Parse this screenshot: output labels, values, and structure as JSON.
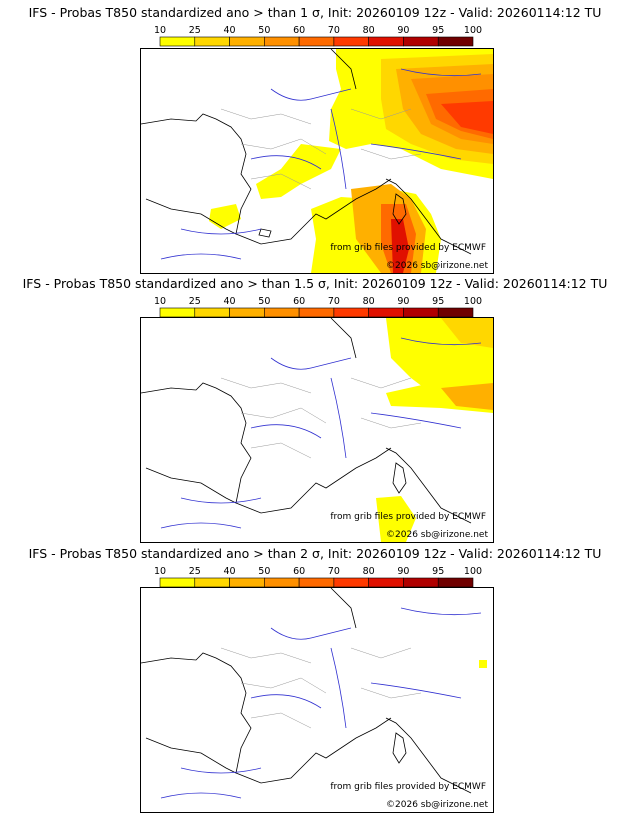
{
  "legend": {
    "levels": [
      "10",
      "25",
      "40",
      "50",
      "60",
      "70",
      "80",
      "90",
      "95",
      "100"
    ],
    "colors": [
      "#ffff00",
      "#ffd700",
      "#ffb000",
      "#ff9000",
      "#ff6a00",
      "#ff3a00",
      "#e01000",
      "#b00000",
      "#700000"
    ]
  },
  "panels": [
    {
      "title": "IFS - Probas T850  standardized ano > than 1 σ, Init: 20260109 12z - Valid: 20260114:12 TU"
    },
    {
      "title": "IFS - Probas T850  standardized ano > than 1.5 σ, Init: 20260109 12z - Valid: 20260114:12 TU"
    },
    {
      "title": "IFS - Probas T850  standardized ano > than 2 σ, Init: 20260109 12z - Valid: 20260114:12 TU"
    }
  ],
  "credits": {
    "source": "from grib files provided by ECMWF",
    "copyright": "©2026 sb@irizone.net"
  }
}
